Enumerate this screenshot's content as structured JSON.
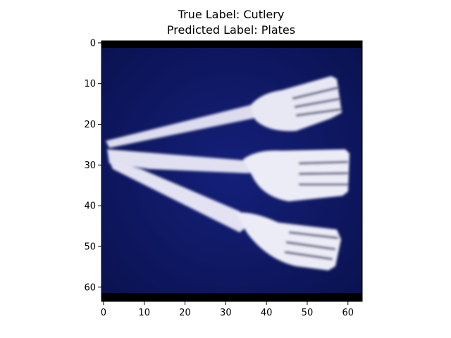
{
  "figure": {
    "title_line1": "True Label: Cutlery",
    "title_line2": "Predicted Label: Plates"
  },
  "image_content": {
    "subject": "three white forks on a dark navy background",
    "background_color": "#0d1666",
    "object_color": "#e6e6f2"
  },
  "axes": {
    "x_ticks": [
      "0",
      "10",
      "20",
      "30",
      "40",
      "50",
      "60"
    ],
    "y_ticks": [
      "0",
      "10",
      "20",
      "30",
      "40",
      "50",
      "60"
    ],
    "x_range": [
      -0.5,
      63.5
    ],
    "y_range": [
      -0.5,
      63.5
    ],
    "y_inverted": true
  }
}
